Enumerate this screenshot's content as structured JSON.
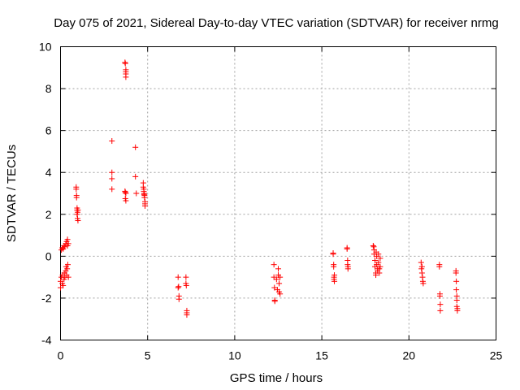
{
  "chart_data": {
    "type": "scatter",
    "title": "Day 075 of 2021, Sidereal Day-to-day VTEC variation (SDTVAR) for receiver nrmg",
    "xlabel": "GPS time / hours",
    "ylabel": "SDTVAR / TECUs",
    "xlim": [
      0,
      25
    ],
    "ylim": [
      -4,
      10
    ],
    "xticks": [
      0,
      5,
      10,
      15,
      20,
      25
    ],
    "yticks": [
      -4,
      -2,
      0,
      2,
      4,
      6,
      8,
      10
    ],
    "xtick_labels": [
      "0",
      "5",
      "10",
      "15",
      "20",
      "25"
    ],
    "ytick_labels": [
      "-4",
      "-2",
      "0",
      "2",
      "4",
      "6",
      "8",
      "10"
    ],
    "grid": true,
    "marker": "+",
    "color": "#ff0000",
    "series": [
      {
        "name": "SDTVAR",
        "points": [
          [
            0.0,
            -1.5
          ],
          [
            0.0,
            -1.2
          ],
          [
            0.05,
            -1.0
          ],
          [
            0.05,
            0.3
          ],
          [
            0.1,
            -1.3
          ],
          [
            0.1,
            0.4
          ],
          [
            0.12,
            -0.9
          ],
          [
            0.15,
            0.35
          ],
          [
            0.15,
            -1.4
          ],
          [
            0.2,
            -1.1
          ],
          [
            0.2,
            0.5
          ],
          [
            0.22,
            -0.8
          ],
          [
            0.25,
            0.45
          ],
          [
            0.25,
            -1.0
          ],
          [
            0.3,
            -0.7
          ],
          [
            0.3,
            0.6
          ],
          [
            0.32,
            -0.5
          ],
          [
            0.35,
            0.7
          ],
          [
            0.35,
            -0.9
          ],
          [
            0.38,
            -0.6
          ],
          [
            0.4,
            0.5
          ],
          [
            0.4,
            0.8
          ],
          [
            0.42,
            -0.4
          ],
          [
            0.45,
            -1.0
          ],
          [
            0.45,
            0.6
          ],
          [
            0.9,
            3.3
          ],
          [
            0.9,
            3.2
          ],
          [
            0.92,
            2.9
          ],
          [
            0.92,
            2.8
          ],
          [
            0.95,
            2.3
          ],
          [
            0.95,
            2.2
          ],
          [
            0.95,
            2.0
          ],
          [
            0.98,
            2.1
          ],
          [
            0.98,
            1.8
          ],
          [
            1.0,
            1.7
          ],
          [
            1.0,
            2.2
          ],
          [
            2.95,
            5.5
          ],
          [
            2.95,
            4.0
          ],
          [
            2.95,
            3.7
          ],
          [
            2.95,
            3.2
          ],
          [
            3.7,
            9.25
          ],
          [
            3.72,
            9.2
          ],
          [
            3.75,
            8.9
          ],
          [
            3.75,
            8.8
          ],
          [
            3.75,
            8.7
          ],
          [
            3.75,
            8.55
          ],
          [
            3.7,
            3.1
          ],
          [
            3.72,
            3.05
          ],
          [
            3.75,
            3.0
          ],
          [
            3.72,
            2.75
          ],
          [
            3.75,
            2.65
          ],
          [
            4.3,
            5.2
          ],
          [
            4.3,
            3.8
          ],
          [
            4.35,
            3.0
          ],
          [
            4.75,
            3.5
          ],
          [
            4.75,
            3.3
          ],
          [
            4.78,
            3.2
          ],
          [
            4.78,
            3.1
          ],
          [
            4.8,
            3.0
          ],
          [
            4.8,
            2.95
          ],
          [
            4.82,
            2.9
          ],
          [
            4.82,
            2.8
          ],
          [
            4.85,
            2.6
          ],
          [
            4.85,
            2.5
          ],
          [
            4.85,
            2.4
          ],
          [
            6.75,
            -1.0
          ],
          [
            6.75,
            -1.5
          ],
          [
            6.78,
            -1.45
          ],
          [
            6.8,
            -1.9
          ],
          [
            6.8,
            -2.05
          ],
          [
            7.2,
            -1.0
          ],
          [
            7.2,
            -1.3
          ],
          [
            7.22,
            -1.4
          ],
          [
            7.25,
            -2.6
          ],
          [
            7.25,
            -2.7
          ],
          [
            7.25,
            -2.8
          ],
          [
            12.25,
            -0.4
          ],
          [
            12.25,
            -1.0
          ],
          [
            12.28,
            -1.5
          ],
          [
            12.3,
            -2.1
          ],
          [
            12.3,
            -2.15
          ],
          [
            12.4,
            -1.1
          ],
          [
            12.45,
            -1.6
          ],
          [
            12.5,
            -0.9
          ],
          [
            12.5,
            -0.6
          ],
          [
            12.55,
            -1.3
          ],
          [
            12.55,
            -1.7
          ],
          [
            12.6,
            -1.8
          ],
          [
            12.6,
            -1.0
          ],
          [
            15.65,
            0.15
          ],
          [
            15.65,
            0.1
          ],
          [
            15.68,
            -0.4
          ],
          [
            15.68,
            -0.5
          ],
          [
            15.7,
            -1.0
          ],
          [
            15.7,
            -1.1
          ],
          [
            15.72,
            -0.9
          ],
          [
            15.72,
            -1.2
          ],
          [
            16.45,
            0.4
          ],
          [
            16.45,
            0.35
          ],
          [
            16.48,
            -0.2
          ],
          [
            16.48,
            -0.4
          ],
          [
            16.5,
            -0.5
          ],
          [
            16.5,
            -0.6
          ],
          [
            17.95,
            0.5
          ],
          [
            17.98,
            0.45
          ],
          [
            18.0,
            0.3
          ],
          [
            18.0,
            0.1
          ],
          [
            18.05,
            -0.2
          ],
          [
            18.05,
            -0.5
          ],
          [
            18.1,
            -0.8
          ],
          [
            18.1,
            -0.9
          ],
          [
            18.12,
            0.2
          ],
          [
            18.15,
            0.0
          ],
          [
            18.15,
            -0.4
          ],
          [
            18.2,
            -0.6
          ],
          [
            18.2,
            -0.7
          ],
          [
            18.25,
            0.1
          ],
          [
            18.25,
            -0.3
          ],
          [
            18.3,
            -0.8
          ],
          [
            18.3,
            -0.6
          ],
          [
            18.35,
            -0.1
          ],
          [
            18.35,
            -0.5
          ],
          [
            20.7,
            -0.3
          ],
          [
            20.72,
            -0.6
          ],
          [
            20.75,
            -0.8
          ],
          [
            20.78,
            -1.0
          ],
          [
            20.8,
            -1.2
          ],
          [
            20.82,
            -1.3
          ],
          [
            20.75,
            -0.5
          ],
          [
            21.75,
            -0.4
          ],
          [
            21.75,
            -0.5
          ],
          [
            21.78,
            -1.8
          ],
          [
            21.78,
            -1.9
          ],
          [
            21.8,
            -2.3
          ],
          [
            21.8,
            -2.6
          ],
          [
            22.7,
            -0.7
          ],
          [
            22.7,
            -0.8
          ],
          [
            22.72,
            -1.2
          ],
          [
            22.72,
            -1.6
          ],
          [
            22.75,
            -1.9
          ],
          [
            22.75,
            -2.1
          ],
          [
            22.75,
            -2.4
          ],
          [
            22.78,
            -2.5
          ],
          [
            22.78,
            -2.6
          ]
        ]
      }
    ]
  }
}
